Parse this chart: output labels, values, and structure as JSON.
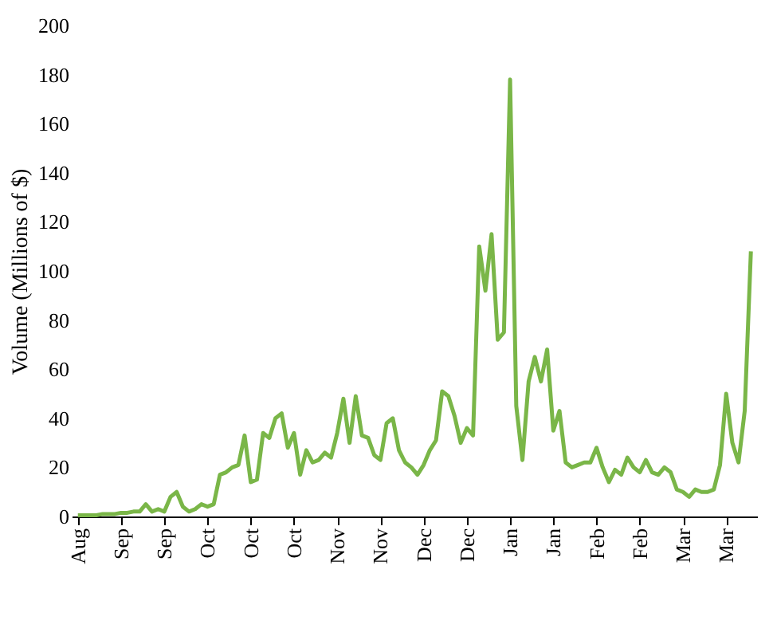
{
  "chart_data": {
    "type": "line",
    "ylabel": "Volume (Millions of $)",
    "categories": [
      "Aug",
      null,
      null,
      null,
      null,
      null,
      null,
      "Sep",
      null,
      null,
      null,
      null,
      null,
      null,
      "Sep",
      null,
      null,
      null,
      null,
      null,
      null,
      "Oct",
      null,
      null,
      null,
      null,
      null,
      null,
      "Oct",
      null,
      null,
      null,
      null,
      null,
      null,
      "Oct",
      null,
      null,
      null,
      null,
      null,
      null,
      "Nov",
      null,
      null,
      null,
      null,
      null,
      null,
      "Nov",
      null,
      null,
      null,
      null,
      null,
      null,
      "Dec",
      null,
      null,
      null,
      null,
      null,
      null,
      "Dec",
      null,
      null,
      null,
      null,
      null,
      null,
      "Jan",
      null,
      null,
      null,
      null,
      null,
      null,
      "Jan",
      null,
      null,
      null,
      null,
      null,
      null,
      "Feb",
      null,
      null,
      null,
      null,
      null,
      null,
      "Feb",
      null,
      null,
      null,
      null,
      null,
      null,
      "Mar",
      null,
      null,
      null,
      null,
      null,
      null,
      "Mar",
      null,
      null,
      null,
      null
    ],
    "series": [
      {
        "color": "#7ab648",
        "values": [
          0.5,
          0.5,
          0.5,
          0.5,
          1,
          1,
          1,
          1.5,
          1.5,
          2,
          2,
          5,
          2,
          3,
          2,
          8,
          10,
          4,
          2,
          3,
          5,
          4,
          5,
          17,
          18,
          20,
          21,
          33,
          14,
          15,
          34,
          32,
          40,
          42,
          28,
          34,
          17,
          27,
          22,
          23,
          26,
          24,
          34,
          48,
          30,
          49,
          33,
          32,
          25,
          23,
          38,
          40,
          27,
          22,
          20,
          17,
          21,
          27,
          31,
          51,
          49,
          41,
          30,
          36,
          33,
          110,
          92,
          115,
          72,
          75,
          178,
          45,
          23,
          55,
          65,
          55,
          68,
          35,
          43,
          22,
          20,
          21,
          22,
          22,
          28,
          20,
          14,
          19,
          17,
          24,
          20,
          18,
          23,
          18,
          17,
          20,
          18,
          11,
          10,
          8,
          11,
          10,
          10,
          11,
          21,
          50,
          30,
          22,
          43,
          108
        ]
      }
    ],
    "ylim": [
      0,
      200
    ],
    "yticks": [
      0,
      20,
      40,
      60,
      80,
      100,
      120,
      140,
      160,
      180,
      200
    ],
    "grid": false,
    "marker": "none",
    "line_style": "solid"
  }
}
